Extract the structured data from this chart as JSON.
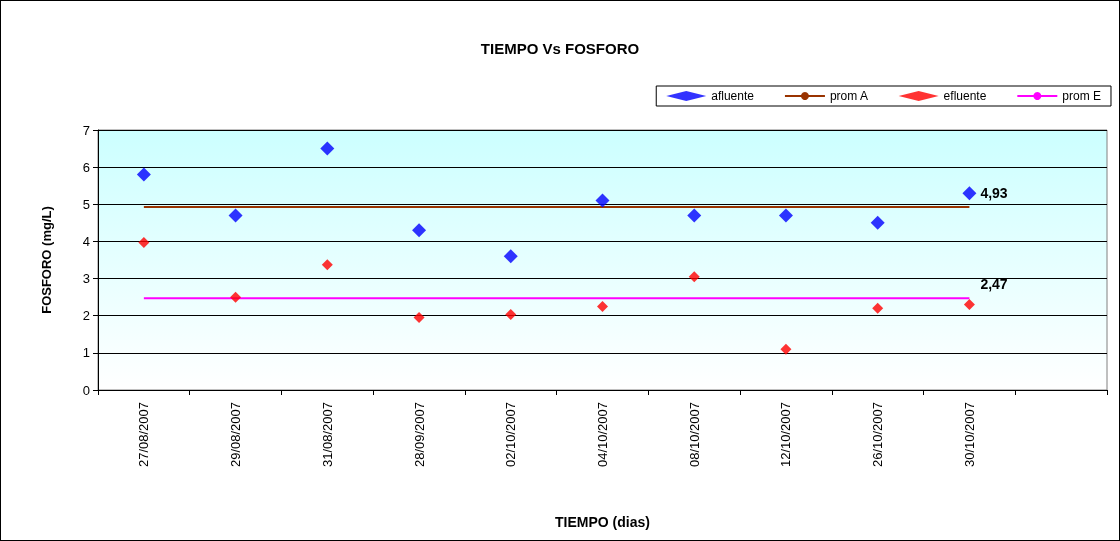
{
  "chart_data": {
    "type": "scatter",
    "title": "TIEMPO Vs FOSFORO",
    "xlabel": "TIEMPO (dias)",
    "ylabel": "FOSFORO (mg/L)",
    "categories": [
      "27/08/2007",
      "29/08/2007",
      "31/08/2007",
      "28/09/2007",
      "02/10/2007",
      "04/10/2007",
      "08/10/2007",
      "12/10/2007",
      "26/10/2007",
      "30/10/2007",
      null
    ],
    "series": [
      {
        "name": "afluente",
        "color": "#0000ff",
        "marker": "diamond",
        "values": [
          5.8,
          4.7,
          6.5,
          4.3,
          3.6,
          5.1,
          4.7,
          4.7,
          4.5,
          5.3,
          null
        ]
      },
      {
        "name": "prom A",
        "type": "line",
        "color": "#993300",
        "values": [
          4.93,
          4.93,
          4.93,
          4.93,
          4.93,
          4.93,
          4.93,
          4.93,
          4.93,
          4.93,
          null
        ],
        "value_labels": [
          null,
          null,
          null,
          null,
          null,
          null,
          null,
          null,
          null,
          "4,93",
          null
        ]
      },
      {
        "name": "efluente",
        "color": "#ff0000",
        "marker": "diamond",
        "values": [
          3.97,
          2.5,
          3.37,
          1.95,
          2.03,
          2.25,
          3.05,
          1.1,
          2.2,
          2.3,
          null
        ]
      },
      {
        "name": "prom E",
        "type": "line",
        "color": "#ff00ff",
        "values": [
          2.47,
          2.47,
          2.47,
          2.47,
          2.47,
          2.47,
          2.47,
          2.47,
          2.47,
          2.47,
          null
        ],
        "value_labels": [
          null,
          null,
          null,
          null,
          null,
          null,
          null,
          null,
          null,
          "2,47",
          null
        ]
      }
    ],
    "ylim": [
      0,
      7
    ],
    "yticks": [
      0,
      1,
      2,
      3,
      4,
      5,
      6,
      7
    ],
    "grid": "y",
    "legend": "top right",
    "line_style": "solid"
  }
}
